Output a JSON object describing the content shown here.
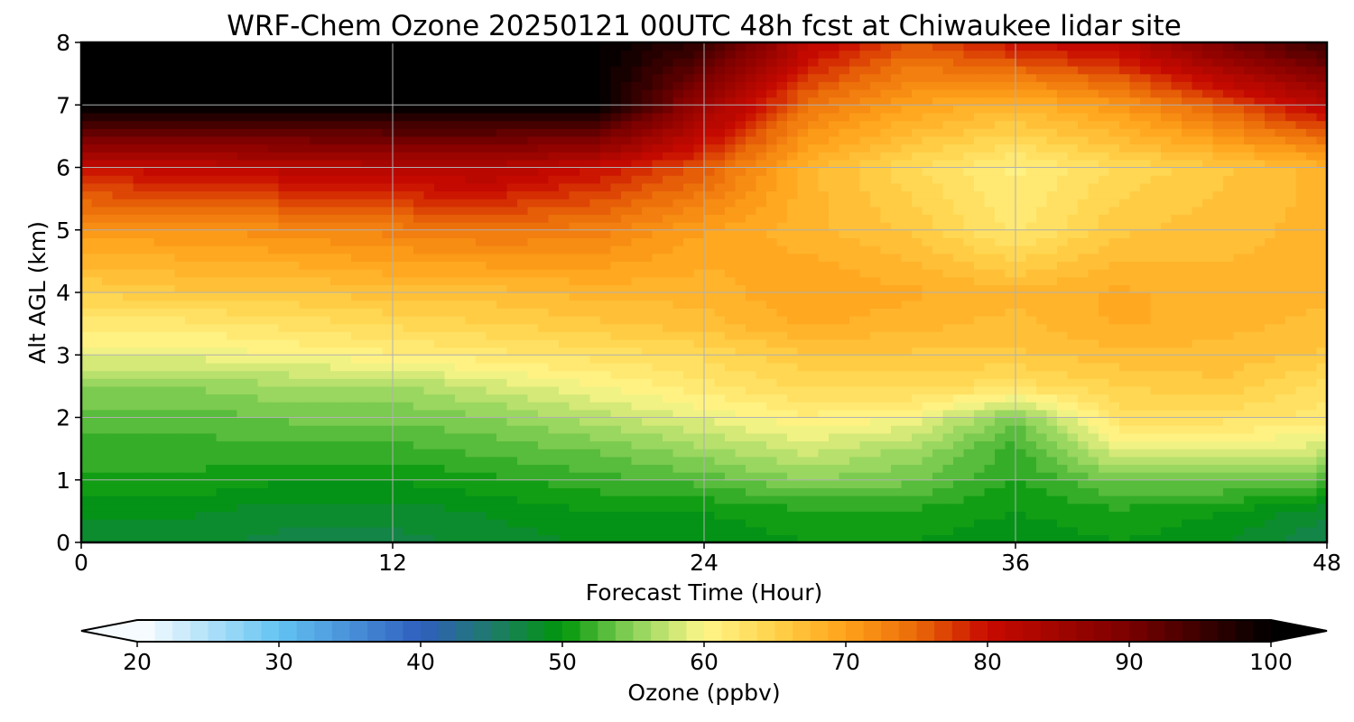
{
  "chart_data": {
    "type": "heatmap",
    "title": "WRF-Chem Ozone  20250121 00UTC 48h fcst at Chiwaukee lidar site",
    "xlabel": "Forecast Time (Hour)",
    "ylabel": "Alt AGL (km)",
    "xlim": [
      0,
      48
    ],
    "ylim": [
      0,
      8
    ],
    "xticks": [
      "0",
      "12",
      "24",
      "36",
      "48"
    ],
    "yticks": [
      "0",
      "1",
      "2",
      "3",
      "4",
      "5",
      "6",
      "7",
      "8"
    ],
    "grid": true,
    "colorbar": {
      "label": "Ozone  (ppbv)",
      "min": 20,
      "max": 100,
      "ticks": [
        "20",
        "30",
        "40",
        "50",
        "60",
        "70",
        "80",
        "90",
        "100"
      ],
      "extend": "both",
      "colors": [
        {
          "v": 20,
          "c": "#ffffff"
        },
        {
          "v": 30,
          "c": "#63c3f2"
        },
        {
          "v": 40,
          "c": "#2f5fbf"
        },
        {
          "v": 45,
          "c": "#1f7a6a"
        },
        {
          "v": 50,
          "c": "#00960a"
        },
        {
          "v": 55,
          "c": "#8cd25a"
        },
        {
          "v": 60,
          "c": "#fff68a"
        },
        {
          "v": 65,
          "c": "#ffd24a"
        },
        {
          "v": 70,
          "c": "#ffa21a"
        },
        {
          "v": 75,
          "c": "#ea6a08"
        },
        {
          "v": 80,
          "c": "#c80a00"
        },
        {
          "v": 90,
          "c": "#7a0000"
        },
        {
          "v": 100,
          "c": "#000000"
        }
      ]
    },
    "x": [
      0,
      4,
      8,
      12,
      16,
      20,
      24,
      28,
      32,
      36,
      40,
      44,
      48
    ],
    "y": [
      0,
      0.5,
      1,
      1.5,
      2,
      2.5,
      3,
      3.5,
      4,
      5,
      6,
      7,
      8
    ],
    "z": [
      [
        48,
        48,
        47,
        47,
        48,
        49,
        49,
        50,
        50,
        49,
        50,
        49,
        46
      ],
      [
        49,
        49,
        48,
        48,
        49,
        50,
        50,
        51,
        51,
        50,
        51,
        50,
        48
      ],
      [
        51,
        51,
        50,
        50,
        51,
        52,
        53,
        55,
        54,
        51,
        54,
        54,
        53
      ],
      [
        52,
        52,
        52,
        52,
        53,
        54,
        56,
        58,
        56,
        52,
        59,
        59,
        58
      ],
      [
        53,
        53,
        54,
        54,
        55,
        57,
        59,
        61,
        60,
        54,
        63,
        63,
        62
      ],
      [
        55,
        55,
        56,
        56,
        58,
        60,
        62,
        64,
        64,
        63,
        65,
        66,
        63
      ],
      [
        59,
        59,
        60,
        61,
        62,
        63,
        64,
        66,
        66,
        66,
        67,
        67,
        66
      ],
      [
        62,
        62,
        63,
        64,
        65,
        66,
        67,
        69,
        68,
        67,
        69,
        68,
        67
      ],
      [
        65,
        66,
        66,
        67,
        67,
        68,
        68,
        70,
        69,
        68,
        69,
        68,
        68
      ],
      [
        71,
        71,
        72,
        73,
        74,
        73,
        70,
        68,
        66,
        62,
        66,
        67,
        68
      ],
      [
        80,
        81,
        82,
        83,
        83,
        80,
        76,
        68,
        64,
        61,
        64,
        66,
        68
      ],
      [
        100,
        100,
        100,
        100,
        100,
        100,
        86,
        74,
        70,
        68,
        71,
        76,
        82
      ],
      [
        100,
        100,
        100,
        100,
        100,
        100,
        96,
        82,
        76,
        80,
        82,
        90,
        96
      ]
    ]
  }
}
